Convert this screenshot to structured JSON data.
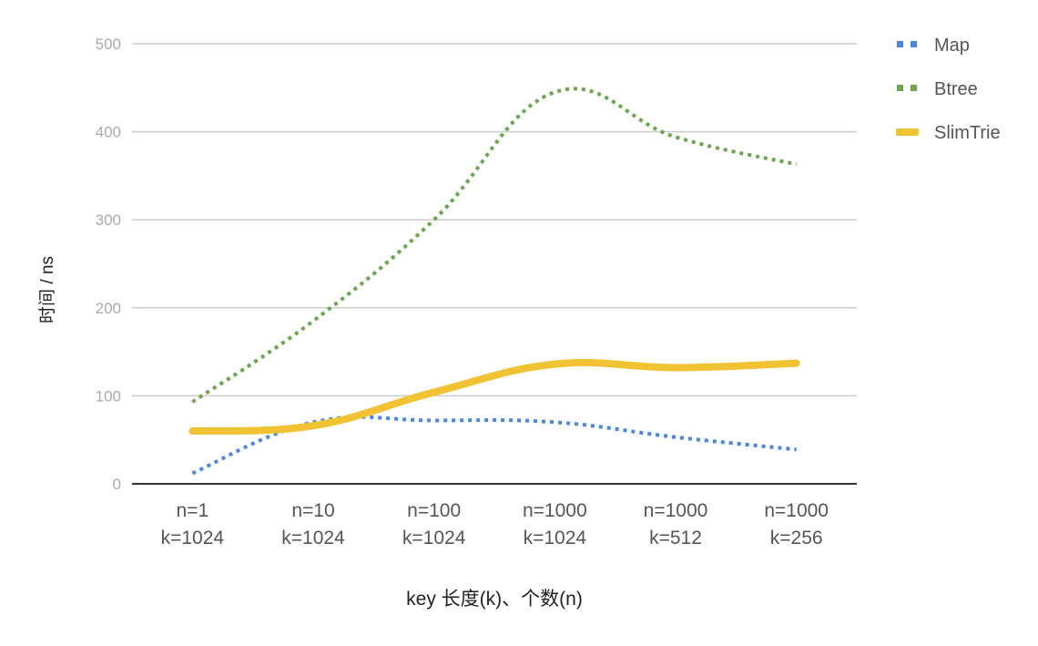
{
  "chart_data": {
    "type": "line",
    "title": "",
    "xlabel": "key 长度(k)、个数(n)",
    "ylabel": "时间 / ns",
    "ylim": [
      0,
      500
    ],
    "yticks": [
      "0",
      "100",
      "200",
      "300",
      "400",
      "500"
    ],
    "yticks_values": [
      0,
      100,
      200,
      300,
      400,
      500
    ],
    "grid": true,
    "legend_position": "right",
    "categories": [
      [
        "n=1",
        "k=1024"
      ],
      [
        "n=10",
        "k=1024"
      ],
      [
        "n=100",
        "k=1024"
      ],
      [
        "n=1000",
        "k=1024"
      ],
      [
        "n=1000",
        "k=512"
      ],
      [
        "n=1000",
        "k=256"
      ]
    ],
    "series": [
      {
        "name": "Map",
        "color": "#4a86e8",
        "style": "dotted",
        "values": [
          12,
          70,
          72,
          70,
          53,
          39
        ]
      },
      {
        "name": "Btree",
        "color": "#6aa84f",
        "style": "dotted",
        "values": [
          93,
          185,
          300,
          445,
          394,
          363
        ]
      },
      {
        "name": "SlimTrie",
        "color": "#f1c232",
        "style": "solid",
        "values": [
          60,
          66,
          104,
          136,
          132,
          137
        ]
      }
    ]
  }
}
